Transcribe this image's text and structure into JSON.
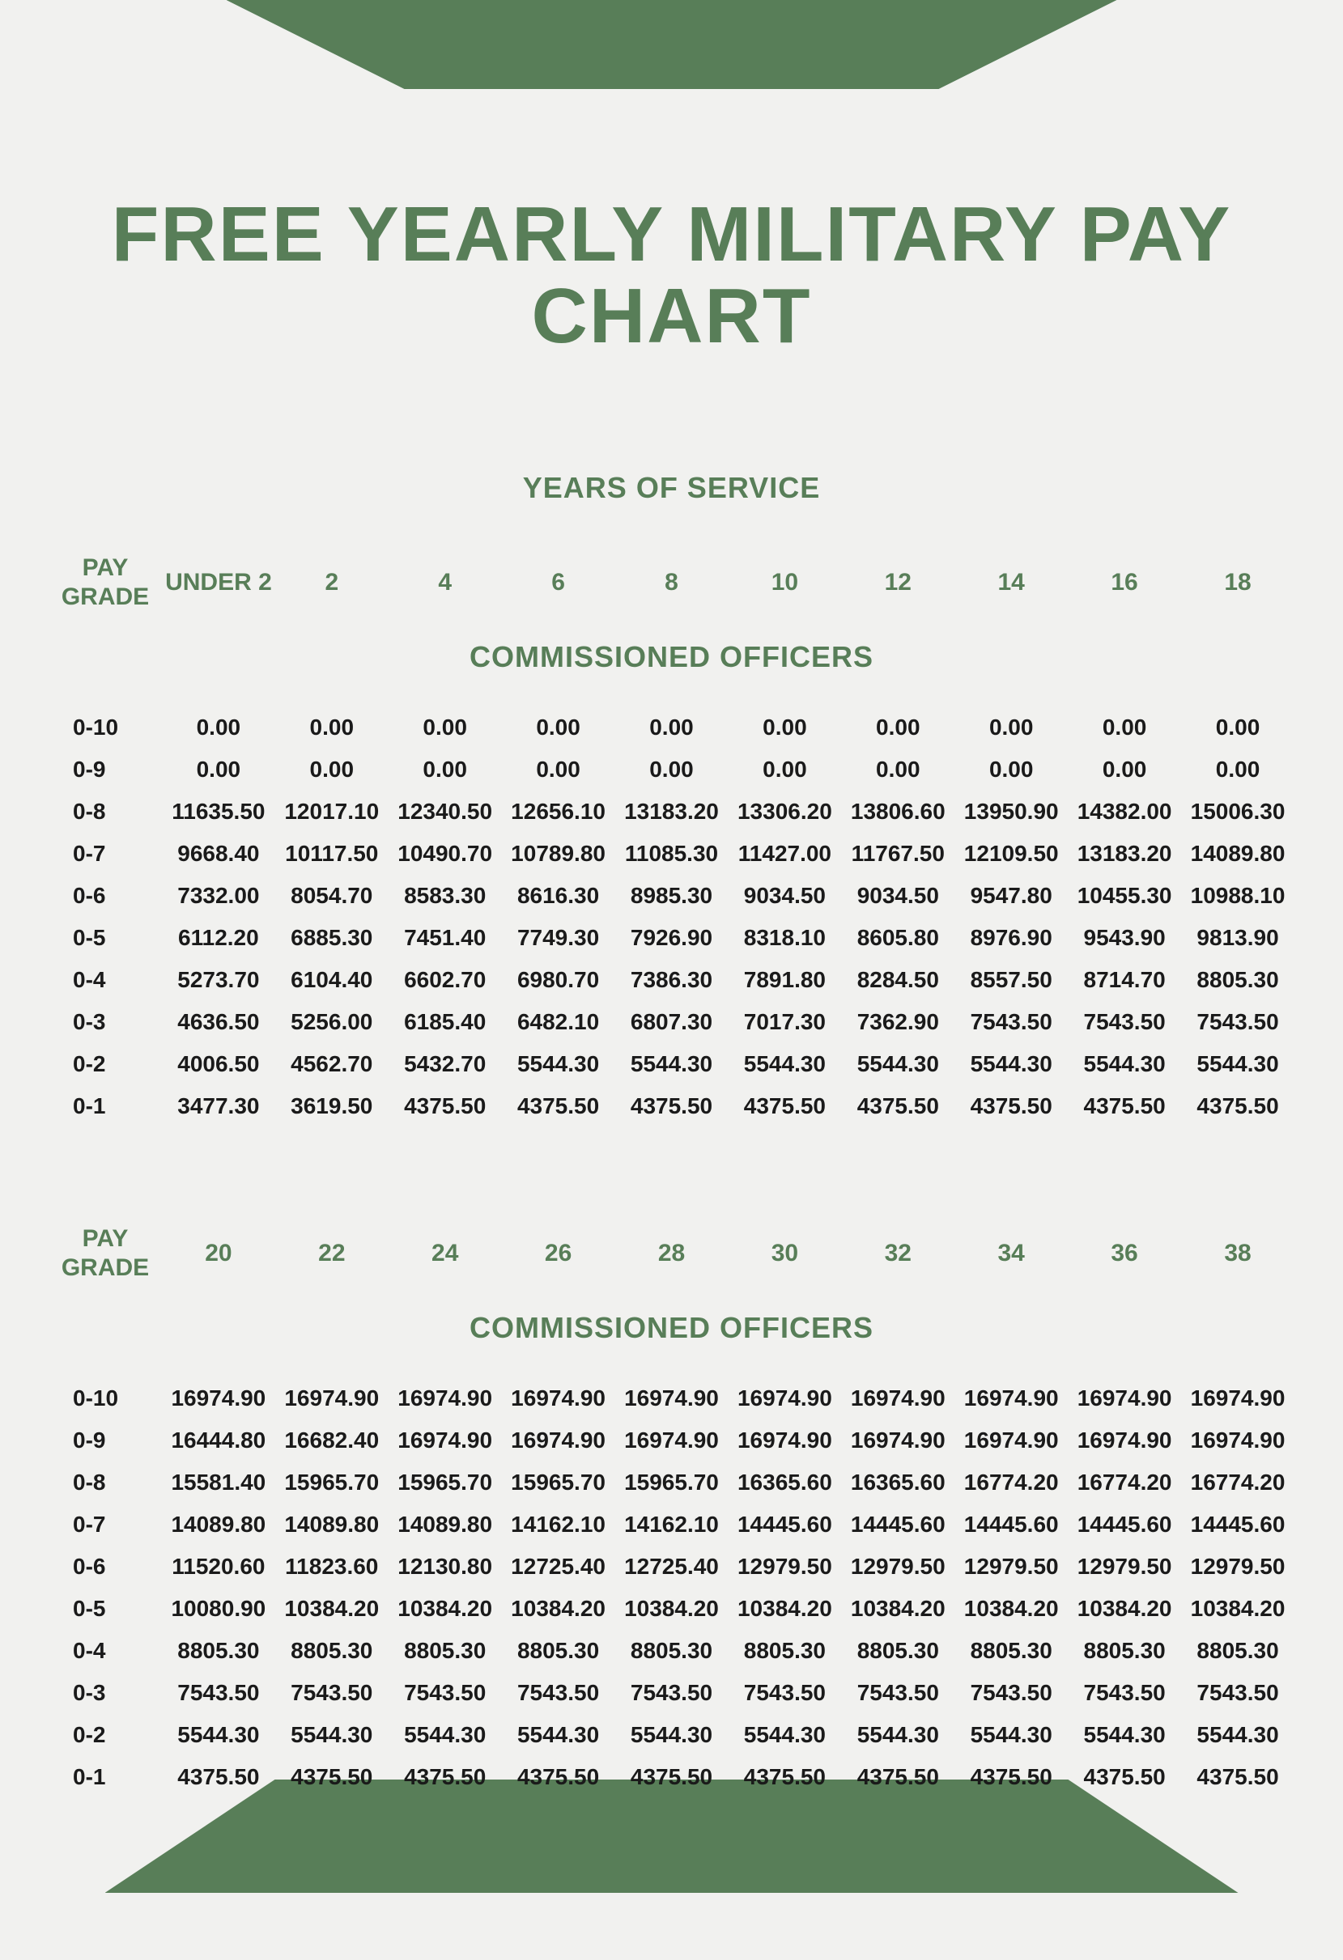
{
  "colors": {
    "accent": "#587e58",
    "background": "#f1f1ef",
    "text": "#1a1a1a"
  },
  "title": "FREE YEARLY MILITARY PAY CHART",
  "subtitle": "YEARS OF SERVICE",
  "section_label": "COMMISSIONED OFFICERS",
  "headers1": [
    "PAY GRADE",
    "UNDER 2",
    "2",
    "4",
    "6",
    "8",
    "10",
    "12",
    "14",
    "16",
    "18"
  ],
  "headers2": [
    "PAY GRADE",
    "20",
    "22",
    "24",
    "26",
    "28",
    "30",
    "32",
    "34",
    "36",
    "38"
  ],
  "grades": [
    "0-10",
    "0-9",
    "0-8",
    "0-7",
    "0-6",
    "0-5",
    "0-4",
    "0-3",
    "0-2",
    "0-1"
  ],
  "table1": [
    [
      "0.00",
      "0.00",
      "0.00",
      "0.00",
      "0.00",
      "0.00",
      "0.00",
      "0.00",
      "0.00",
      "0.00"
    ],
    [
      "0.00",
      "0.00",
      "0.00",
      "0.00",
      "0.00",
      "0.00",
      "0.00",
      "0.00",
      "0.00",
      "0.00"
    ],
    [
      "11635.50",
      "12017.10",
      "12340.50",
      "12656.10",
      "13183.20",
      "13306.20",
      "13806.60",
      "13950.90",
      "14382.00",
      "15006.30"
    ],
    [
      "9668.40",
      "10117.50",
      "10490.70",
      "10789.80",
      "11085.30",
      "11427.00",
      "11767.50",
      "12109.50",
      "13183.20",
      "14089.80"
    ],
    [
      "7332.00",
      "8054.70",
      "8583.30",
      "8616.30",
      "8985.30",
      "9034.50",
      "9034.50",
      "9547.80",
      "10455.30",
      "10988.10"
    ],
    [
      "6112.20",
      "6885.30",
      "7451.40",
      "7749.30",
      "7926.90",
      "8318.10",
      "8605.80",
      "8976.90",
      "9543.90",
      "9813.90"
    ],
    [
      "5273.70",
      "6104.40",
      "6602.70",
      "6980.70",
      "7386.30",
      "7891.80",
      "8284.50",
      "8557.50",
      "8714.70",
      "8805.30"
    ],
    [
      "4636.50",
      "5256.00",
      "6185.40",
      "6482.10",
      "6807.30",
      "7017.30",
      "7362.90",
      "7543.50",
      "7543.50",
      "7543.50"
    ],
    [
      "4006.50",
      "4562.70",
      "5432.70",
      "5544.30",
      "5544.30",
      "5544.30",
      "5544.30",
      "5544.30",
      "5544.30",
      "5544.30"
    ],
    [
      "3477.30",
      "3619.50",
      "4375.50",
      "4375.50",
      "4375.50",
      "4375.50",
      "4375.50",
      "4375.50",
      "4375.50",
      "4375.50"
    ]
  ],
  "table2": [
    [
      "16974.90",
      "16974.90",
      "16974.90",
      "16974.90",
      "16974.90",
      "16974.90",
      "16974.90",
      "16974.90",
      "16974.90",
      "16974.90"
    ],
    [
      "16444.80",
      "16682.40",
      "16974.90",
      "16974.90",
      "16974.90",
      "16974.90",
      "16974.90",
      "16974.90",
      "16974.90",
      "16974.90"
    ],
    [
      "15581.40",
      "15965.70",
      "15965.70",
      "15965.70",
      "15965.70",
      "16365.60",
      "16365.60",
      "16774.20",
      "16774.20",
      "16774.20"
    ],
    [
      "14089.80",
      "14089.80",
      "14089.80",
      "14162.10",
      "14162.10",
      "14445.60",
      "14445.60",
      "14445.60",
      "14445.60",
      "14445.60"
    ],
    [
      "11520.60",
      "11823.60",
      "12130.80",
      "12725.40",
      "12725.40",
      "12979.50",
      "12979.50",
      "12979.50",
      "12979.50",
      "12979.50"
    ],
    [
      "10080.90",
      "10384.20",
      "10384.20",
      "10384.20",
      "10384.20",
      "10384.20",
      "10384.20",
      "10384.20",
      "10384.20",
      "10384.20"
    ],
    [
      "8805.30",
      "8805.30",
      "8805.30",
      "8805.30",
      "8805.30",
      "8805.30",
      "8805.30",
      "8805.30",
      "8805.30",
      "8805.30"
    ],
    [
      "7543.50",
      "7543.50",
      "7543.50",
      "7543.50",
      "7543.50",
      "7543.50",
      "7543.50",
      "7543.50",
      "7543.50",
      "7543.50"
    ],
    [
      "5544.30",
      "5544.30",
      "5544.30",
      "5544.30",
      "5544.30",
      "5544.30",
      "5544.30",
      "5544.30",
      "5544.30",
      "5544.30"
    ],
    [
      "4375.50",
      "4375.50",
      "4375.50",
      "4375.50",
      "4375.50",
      "4375.50",
      "4375.50",
      "4375.50",
      "4375.50",
      "4375.50"
    ]
  ]
}
